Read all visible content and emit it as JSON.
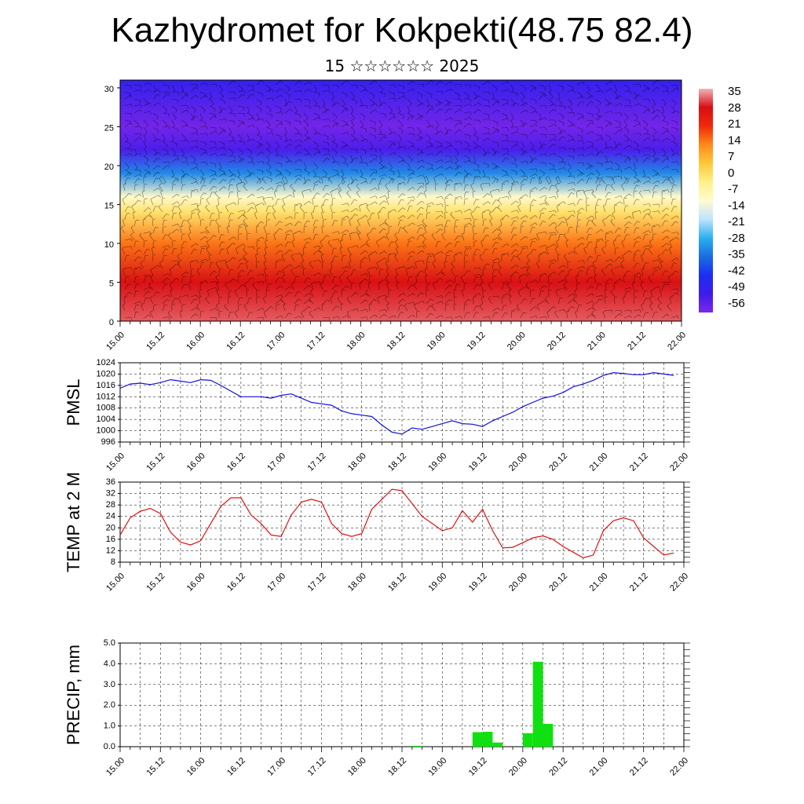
{
  "header": {
    "title": "Kazhydromet for Kokpekti(48.75 82.4)",
    "subtitle": "15 ☆☆☆☆☆☆ 2025"
  },
  "time_labels": [
    "15.00",
    "15.12",
    "16.00",
    "16.12",
    "17.00",
    "17.12",
    "18.00",
    "18.12",
    "19.00",
    "19.12",
    "20.00",
    "20.12",
    "21.00",
    "21.12",
    "22.00"
  ],
  "chart_data": [
    {
      "type": "heatmap",
      "description_of_field": "vertical cross-section of temperature with wind barbs",
      "yticks": [
        "0",
        "5",
        "10",
        "15",
        "20",
        "25",
        "30"
      ],
      "ylim": [
        0,
        31
      ],
      "colorbar": {
        "labels": [
          "35",
          "28",
          "21",
          "14",
          "7",
          "0",
          "-7",
          "-14",
          "-21",
          "-28",
          "-35",
          "-42",
          "-49",
          "-56"
        ],
        "colors": [
          "#f2b3b8",
          "#d80e14",
          "#f02a0a",
          "#ff8a1a",
          "#ffc83a",
          "#fff08a",
          "#fffbd0",
          "#bfe3ff",
          "#2bb0f0",
          "#1a6de0",
          "#1b2ff2",
          "#3e1bea",
          "#7b27e8"
        ]
      },
      "profile": [
        {
          "alt": 0,
          "temp": 31
        },
        {
          "alt": 5,
          "temp": 27
        },
        {
          "alt": 10,
          "temp": 14
        },
        {
          "alt": 14,
          "temp": 0
        },
        {
          "alt": 16,
          "temp": -10
        },
        {
          "alt": 19,
          "temp": -30
        },
        {
          "alt": 22,
          "temp": -50
        },
        {
          "alt": 25,
          "temp": -55
        },
        {
          "alt": 31,
          "temp": -46
        }
      ]
    },
    {
      "type": "line",
      "ylabel": "PMSL",
      "ylim": [
        996,
        1024
      ],
      "yticks": [
        "996",
        "1000",
        "1004",
        "1008",
        "1012",
        "1016",
        "1020",
        "1024"
      ],
      "color": "#1010e0",
      "x_hours": [
        0,
        3,
        6,
        9,
        12,
        15,
        18,
        21,
        24,
        27,
        30,
        33,
        36,
        39,
        42,
        45,
        48,
        51,
        54,
        57,
        60,
        63,
        66,
        69,
        72,
        75,
        78,
        81,
        84,
        87,
        90,
        93,
        96,
        99,
        102,
        105,
        108,
        111,
        114,
        117,
        120,
        123,
        126,
        129,
        132,
        135,
        138,
        141,
        144,
        147,
        150,
        153,
        156,
        159,
        162,
        165
      ],
      "values": [
        1015,
        1016.5,
        1016.8,
        1016.3,
        1017,
        1018,
        1017.5,
        1017,
        1018,
        1017.8,
        1016,
        1014,
        1012,
        1012,
        1012,
        1011.5,
        1012.5,
        1013,
        1011.5,
        1010,
        1009.5,
        1009,
        1007,
        1006,
        1005.5,
        1005,
        1002,
        999.5,
        998.8,
        1001,
        1000.5,
        1001.5,
        1002.5,
        1003.5,
        1002.5,
        1002.3,
        1001.5,
        1003.5,
        1005,
        1006.5,
        1008.5,
        1010,
        1011.5,
        1012.2,
        1013.5,
        1015.5,
        1016.5,
        1017.8,
        1019.5,
        1020.5,
        1020.2,
        1019.8,
        1019.8,
        1020.5,
        1020,
        1019.5
      ]
    },
    {
      "type": "line",
      "ylabel": "TEMP at 2 M",
      "ylim": [
        8,
        36
      ],
      "yticks": [
        "8",
        "12",
        "16",
        "20",
        "24",
        "28",
        "32",
        "36"
      ],
      "color": "#e01010",
      "x_hours": [
        0,
        3,
        6,
        9,
        12,
        15,
        18,
        21,
        24,
        27,
        30,
        33,
        36,
        39,
        42,
        45,
        48,
        51,
        54,
        57,
        60,
        63,
        66,
        69,
        72,
        75,
        78,
        81,
        84,
        87,
        90,
        93,
        96,
        99,
        102,
        105,
        108,
        111,
        114,
        117,
        120,
        123,
        126,
        129,
        132,
        135,
        138,
        141,
        144,
        147,
        150,
        153,
        156,
        159,
        162,
        165
      ],
      "values": [
        17.5,
        23.5,
        25.8,
        26.8,
        25,
        18.5,
        15,
        14,
        15.5,
        21.5,
        27.5,
        30.5,
        30.5,
        24.5,
        21.5,
        17.5,
        17,
        24.5,
        29,
        30,
        29,
        21.5,
        18,
        17,
        18,
        26.5,
        30,
        33.5,
        33,
        28.5,
        24,
        21.5,
        19,
        20,
        26,
        22,
        26.5,
        19,
        13,
        13.2,
        14.8,
        16.5,
        17.2,
        16,
        13.5,
        11.5,
        9.5,
        10.5,
        19,
        22.5,
        23.5,
        22.5,
        16.5,
        13.5,
        10.5,
        11.2
      ]
    },
    {
      "type": "bar",
      "ylabel": "PRECIP, mm",
      "ylim": [
        0,
        5
      ],
      "yticks": [
        "0.0",
        "1.0",
        "2.0",
        "3.0",
        "4.0",
        "5.0"
      ],
      "color": "#10e010",
      "bars": [
        {
          "start_hour": 87,
          "end_hour": 90,
          "value": 0.04
        },
        {
          "start_hour": 105,
          "end_hour": 108,
          "value": 0.7
        },
        {
          "start_hour": 108,
          "end_hour": 111,
          "value": 0.72
        },
        {
          "start_hour": 111,
          "end_hour": 114,
          "value": 0.2
        },
        {
          "start_hour": 120,
          "end_hour": 123,
          "value": 0.65
        },
        {
          "start_hour": 123,
          "end_hour": 126,
          "value": 4.1
        },
        {
          "start_hour": 126,
          "end_hour": 129,
          "value": 1.1
        }
      ]
    }
  ]
}
